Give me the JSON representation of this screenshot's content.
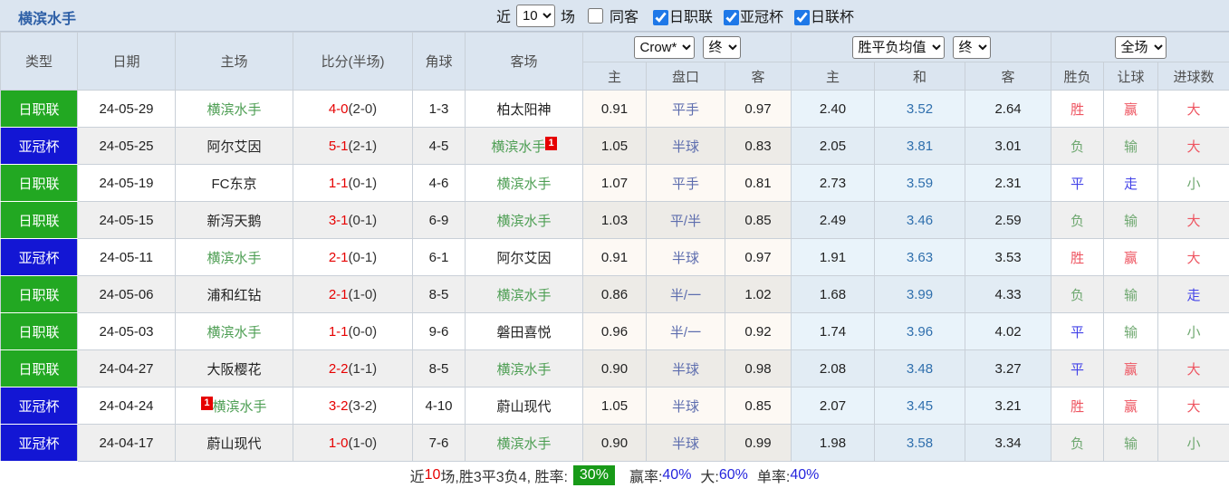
{
  "topbar": {
    "team_name": "横滨水手",
    "recent_label": "近",
    "recent_value": "10",
    "matches_label": "场",
    "same_venue_label": "同客",
    "filters": [
      {
        "label": "日职联",
        "checked": true
      },
      {
        "label": "亚冠杯",
        "checked": true
      },
      {
        "label": "日联杯",
        "checked": true
      }
    ]
  },
  "table_header": {
    "cols": [
      "类型",
      "日期",
      "主场",
      "比分(半场)",
      "角球",
      "客场"
    ],
    "crow_select": "Crow*",
    "crow_state_select": "终",
    "avg_select": "胜平负均值",
    "avg_state_select": "终",
    "period_select": "全场",
    "crow_sub": [
      "主",
      "盘口",
      "客"
    ],
    "avg_sub": [
      "主",
      "和",
      "客"
    ],
    "result_sub": [
      "胜负",
      "让球",
      "进球数"
    ]
  },
  "table": {
    "rows": [
      {
        "type": "日职联",
        "date": "24-05-29",
        "home": "横滨水手",
        "home_badge": "",
        "home_badge_before": false,
        "away": "柏太阳神",
        "away_badge": "",
        "score_ft": "4-0",
        "score_ht": "(2-0)",
        "corners": "1-3",
        "crow": [
          "0.91",
          "平手",
          "0.97"
        ],
        "avg": [
          "2.40",
          "3.52",
          "2.64"
        ],
        "results": [
          "胜",
          "赢",
          "大"
        ]
      },
      {
        "type": "亚冠杯",
        "date": "24-05-25",
        "home": "阿尔艾因",
        "home_badge": "",
        "home_badge_before": false,
        "away": "横滨水手",
        "away_badge": "1",
        "score_ft": "5-1",
        "score_ht": "(2-1)",
        "corners": "4-5",
        "crow": [
          "1.05",
          "半球",
          "0.83"
        ],
        "avg": [
          "2.05",
          "3.81",
          "3.01"
        ],
        "results": [
          "负",
          "输",
          "大"
        ]
      },
      {
        "type": "日职联",
        "date": "24-05-19",
        "home": "FC东京",
        "home_badge": "",
        "home_badge_before": false,
        "away": "横滨水手",
        "away_badge": "",
        "score_ft": "1-1",
        "score_ht": "(0-1)",
        "corners": "4-6",
        "crow": [
          "1.07",
          "平手",
          "0.81"
        ],
        "avg": [
          "2.73",
          "3.59",
          "2.31"
        ],
        "results": [
          "平",
          "走",
          "小"
        ]
      },
      {
        "type": "日职联",
        "date": "24-05-15",
        "home": "新泻天鹅",
        "home_badge": "",
        "home_badge_before": false,
        "away": "横滨水手",
        "away_badge": "",
        "score_ft": "3-1",
        "score_ht": "(0-1)",
        "corners": "6-9",
        "crow": [
          "1.03",
          "平/半",
          "0.85"
        ],
        "avg": [
          "2.49",
          "3.46",
          "2.59"
        ],
        "results": [
          "负",
          "输",
          "大"
        ]
      },
      {
        "type": "亚冠杯",
        "date": "24-05-11",
        "home": "横滨水手",
        "home_badge": "",
        "home_badge_before": false,
        "away": "阿尔艾因",
        "away_badge": "",
        "score_ft": "2-1",
        "score_ht": "(0-1)",
        "corners": "6-1",
        "crow": [
          "0.91",
          "半球",
          "0.97"
        ],
        "avg": [
          "1.91",
          "3.63",
          "3.53"
        ],
        "results": [
          "胜",
          "赢",
          "大"
        ]
      },
      {
        "type": "日职联",
        "date": "24-05-06",
        "home": "浦和红钻",
        "home_badge": "",
        "home_badge_before": false,
        "away": "横滨水手",
        "away_badge": "",
        "score_ft": "2-1",
        "score_ht": "(1-0)",
        "corners": "8-5",
        "crow": [
          "0.86",
          "半/一",
          "1.02"
        ],
        "avg": [
          "1.68",
          "3.99",
          "4.33"
        ],
        "results": [
          "负",
          "输",
          "走"
        ]
      },
      {
        "type": "日职联",
        "date": "24-05-03",
        "home": "横滨水手",
        "home_badge": "",
        "home_badge_before": false,
        "away": "磐田喜悦",
        "away_badge": "",
        "score_ft": "1-1",
        "score_ht": "(0-0)",
        "corners": "9-6",
        "crow": [
          "0.96",
          "半/一",
          "0.92"
        ],
        "avg": [
          "1.74",
          "3.96",
          "4.02"
        ],
        "results": [
          "平",
          "输",
          "小"
        ]
      },
      {
        "type": "日职联",
        "date": "24-04-27",
        "home": "大阪樱花",
        "home_badge": "",
        "home_badge_before": false,
        "away": "横滨水手",
        "away_badge": "",
        "score_ft": "2-2",
        "score_ht": "(1-1)",
        "corners": "8-5",
        "crow": [
          "0.90",
          "半球",
          "0.98"
        ],
        "avg": [
          "2.08",
          "3.48",
          "3.27"
        ],
        "results": [
          "平",
          "赢",
          "大"
        ]
      },
      {
        "type": "亚冠杯",
        "date": "24-04-24",
        "home": "横滨水手",
        "home_badge": "1",
        "home_badge_before": true,
        "away": "蔚山现代",
        "away_badge": "",
        "score_ft": "3-2",
        "score_ht": "(3-2)",
        "corners": "4-10",
        "crow": [
          "1.05",
          "半球",
          "0.85"
        ],
        "avg": [
          "2.07",
          "3.45",
          "3.21"
        ],
        "results": [
          "胜",
          "赢",
          "大"
        ]
      },
      {
        "type": "亚冠杯",
        "date": "24-04-17",
        "home": "蔚山现代",
        "home_badge": "",
        "home_badge_before": false,
        "away": "横滨水手",
        "away_badge": "",
        "score_ft": "1-0",
        "score_ht": "(1-0)",
        "corners": "7-6",
        "crow": [
          "0.90",
          "半球",
          "0.99"
        ],
        "avg": [
          "1.98",
          "3.58",
          "3.34"
        ],
        "results": [
          "负",
          "输",
          "小"
        ]
      }
    ]
  },
  "summary": {
    "prefix": "近",
    "count": "10",
    "mid": "场,胜3平3负4, 胜率:",
    "win_rate": "30%",
    "parts": [
      {
        "label": "赢率:",
        "value": "40%"
      },
      {
        "label": "大:",
        "value": "60%"
      },
      {
        "label": "单率:",
        "value": "40%"
      }
    ]
  }
}
